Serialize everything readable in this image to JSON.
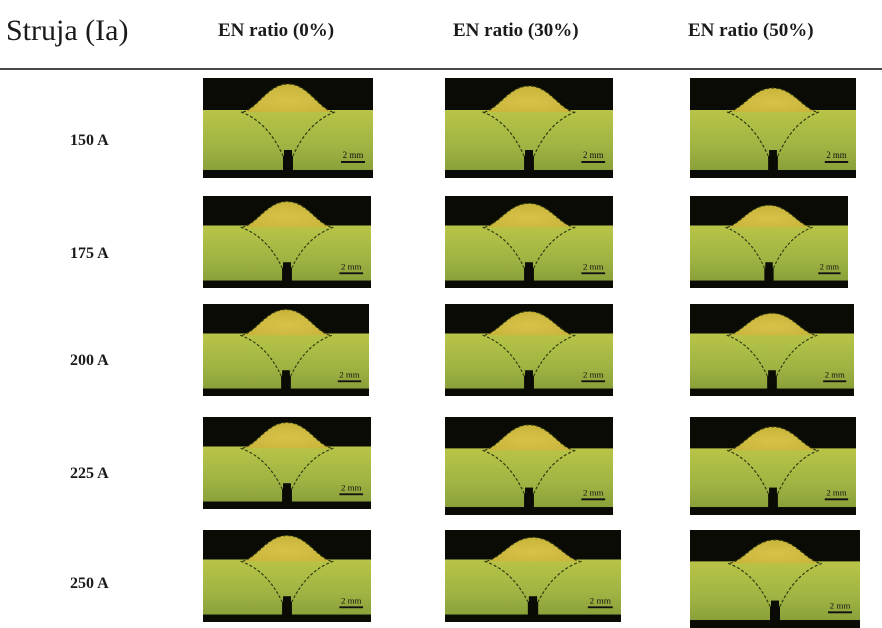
{
  "header": {
    "row_header": "Struja (Ia)",
    "columns": [
      "EN ratio (0%)",
      "EN ratio (30%)",
      "EN ratio (50%)"
    ]
  },
  "rows": [
    {
      "label": "150 A"
    },
    {
      "label": "175 A"
    },
    {
      "label": "200 A"
    },
    {
      "label": "225 A"
    },
    {
      "label": "250 A"
    }
  ],
  "scale_bar_label": "2 mm",
  "colors": {
    "background_black": "#0b0b06",
    "bead_yellow": "#c9b43a",
    "plate_green": "#9fb443",
    "fusion_line": "#2f3a10"
  }
}
